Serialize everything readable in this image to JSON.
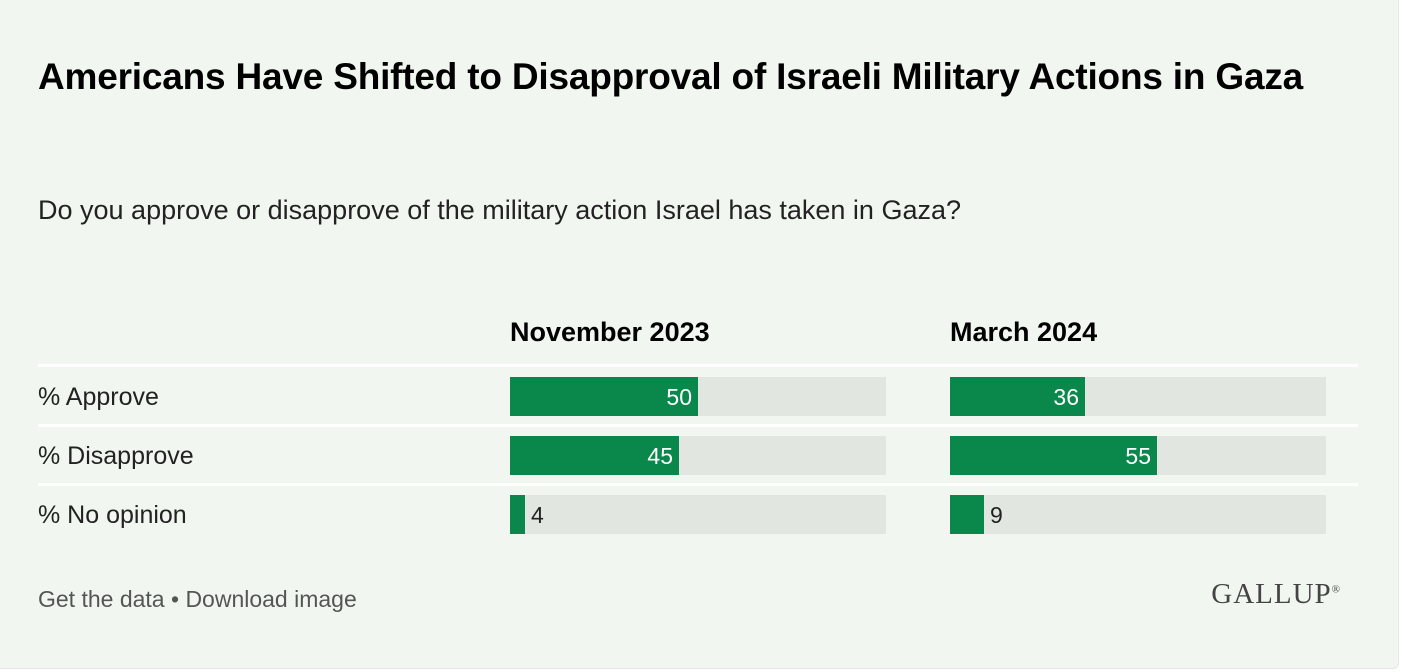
{
  "title": "Americans Have Shifted to Disapproval of Israeli Military Actions in Gaza",
  "subtitle": "Do you approve or disapprove of the military action Israel has taken in Gaza?",
  "footer": {
    "get_data": "Get the data",
    "separator": " • ",
    "download": "Download image"
  },
  "logo": {
    "text": "GALLUP",
    "mark": "®"
  },
  "colors": {
    "bar": "#0a884c",
    "track": "#e2e6e1",
    "background": "#f1f7f0"
  },
  "chart_data": {
    "type": "bar",
    "orientation": "horizontal",
    "title": "Americans Have Shifted to Disapproval of Israeli Military Actions in Gaza",
    "subtitle": "Do you approve or disapprove of the military action Israel has taken in Gaza?",
    "categories": [
      "% Approve",
      "% Disapprove",
      "% No opinion"
    ],
    "series": [
      {
        "name": "November 2023",
        "values": [
          50,
          45,
          4
        ]
      },
      {
        "name": "March 2024",
        "values": [
          36,
          55,
          9
        ]
      }
    ],
    "xlim": [
      0,
      100
    ],
    "grid": false,
    "legend": "none"
  }
}
